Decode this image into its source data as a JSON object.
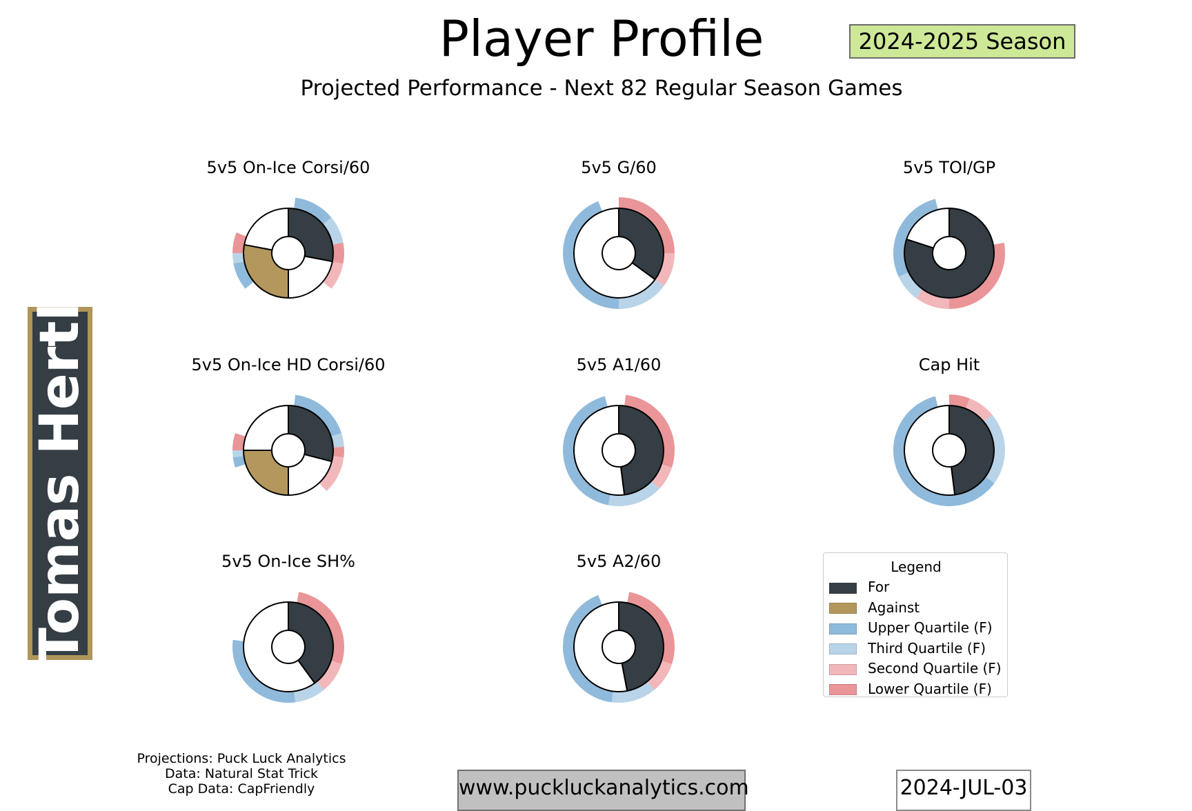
{
  "header": {
    "title": "Player Profile",
    "subtitle": "Projected Performance - Next 82 Regular Season Games",
    "season": "2024-2025 Season"
  },
  "player": {
    "name": "Tomas Hertl"
  },
  "colors": {
    "for": "#343e44",
    "against": "#b3975d",
    "upper": "#8fbadc",
    "third": "#b9d4e8",
    "second": "#f2b7ba",
    "lower": "#ea9598"
  },
  "chart_data": [
    {
      "type": "pie",
      "title": "5v5 On-Ice Corsi/60",
      "for": 0.28,
      "against": 0.28,
      "quartiles": [
        {
          "start": 0.02,
          "end": 0.14,
          "tier": "upper"
        },
        {
          "start": 0.14,
          "end": 0.22,
          "tier": "third"
        },
        {
          "start": 0.22,
          "end": 0.28,
          "tier": "lower"
        },
        {
          "start": 0.28,
          "end": 0.36,
          "tier": "second"
        },
        {
          "start": 0.64,
          "end": 0.72,
          "tier": "upper"
        },
        {
          "start": 0.72,
          "end": 0.75,
          "tier": "third"
        },
        {
          "start": 0.75,
          "end": 0.81,
          "tier": "lower"
        }
      ]
    },
    {
      "type": "pie",
      "title": "5v5 G/60",
      "for": 0.35,
      "against": 0,
      "quartiles": [
        {
          "start": 0.0,
          "end": 0.25,
          "tier": "lower"
        },
        {
          "start": 0.25,
          "end": 0.35,
          "tier": "second"
        },
        {
          "start": 0.35,
          "end": 0.5,
          "tier": "third"
        },
        {
          "start": 0.5,
          "end": 0.94,
          "tier": "upper"
        }
      ]
    },
    {
      "type": "pie",
      "title": "5v5 TOI/GP",
      "for": 0.8,
      "against": 0,
      "quartiles": [
        {
          "start": 0.22,
          "end": 0.5,
          "tier": "lower"
        },
        {
          "start": 0.5,
          "end": 0.6,
          "tier": "second"
        },
        {
          "start": 0.6,
          "end": 0.68,
          "tier": "third"
        },
        {
          "start": 0.68,
          "end": 0.96,
          "tier": "upper"
        }
      ]
    },
    {
      "type": "pie",
      "title": "5v5 On-Ice HD Corsi/60",
      "for": 0.29,
      "against": 0.25,
      "quartiles": [
        {
          "start": 0.02,
          "end": 0.2,
          "tier": "upper"
        },
        {
          "start": 0.2,
          "end": 0.24,
          "tier": "third"
        },
        {
          "start": 0.24,
          "end": 0.27,
          "tier": "lower"
        },
        {
          "start": 0.27,
          "end": 0.38,
          "tier": "second"
        },
        {
          "start": 0.7,
          "end": 0.73,
          "tier": "upper"
        },
        {
          "start": 0.73,
          "end": 0.75,
          "tier": "third"
        },
        {
          "start": 0.75,
          "end": 0.8,
          "tier": "lower"
        }
      ]
    },
    {
      "type": "pie",
      "title": "5v5 A1/60",
      "for": 0.48,
      "against": 0,
      "quartiles": [
        {
          "start": 0.02,
          "end": 0.3,
          "tier": "lower"
        },
        {
          "start": 0.3,
          "end": 0.37,
          "tier": "second"
        },
        {
          "start": 0.37,
          "end": 0.53,
          "tier": "third"
        },
        {
          "start": 0.53,
          "end": 0.96,
          "tier": "upper"
        }
      ]
    },
    {
      "type": "pie",
      "title": "Cap Hit",
      "for": 0.48,
      "against": 0,
      "quartiles": [
        {
          "start": 0.0,
          "end": 0.06,
          "tier": "lower"
        },
        {
          "start": 0.06,
          "end": 0.14,
          "tier": "second"
        },
        {
          "start": 0.14,
          "end": 0.35,
          "tier": "third"
        },
        {
          "start": 0.35,
          "end": 0.96,
          "tier": "upper"
        }
      ]
    },
    {
      "type": "pie",
      "title": "5v5 On-Ice SH%",
      "for": 0.4,
      "against": 0,
      "quartiles": [
        {
          "start": 0.03,
          "end": 0.3,
          "tier": "lower"
        },
        {
          "start": 0.3,
          "end": 0.39,
          "tier": "second"
        },
        {
          "start": 0.39,
          "end": 0.48,
          "tier": "third"
        },
        {
          "start": 0.48,
          "end": 0.77,
          "tier": "upper"
        }
      ]
    },
    {
      "type": "pie",
      "title": "5v5 A2/60",
      "for": 0.47,
      "against": 0,
      "quartiles": [
        {
          "start": 0.03,
          "end": 0.3,
          "tier": "lower"
        },
        {
          "start": 0.3,
          "end": 0.39,
          "tier": "second"
        },
        {
          "start": 0.39,
          "end": 0.52,
          "tier": "third"
        },
        {
          "start": 0.52,
          "end": 0.94,
          "tier": "upper"
        }
      ]
    }
  ],
  "legend": {
    "title": "Legend",
    "items": [
      {
        "label": "For",
        "key": "for"
      },
      {
        "label": "Against",
        "key": "against"
      },
      {
        "label": "Upper Quartile (F)",
        "key": "upper"
      },
      {
        "label": "Third Quartile (F)",
        "key": "third"
      },
      {
        "label": "Second Quartile (F)",
        "key": "second"
      },
      {
        "label": "Lower Quartile (F)",
        "key": "lower"
      }
    ]
  },
  "footer": {
    "credits": [
      "Projections: Puck Luck Analytics",
      "Data: Natural Stat Trick",
      "Cap Data: CapFriendly"
    ],
    "url": "www.puckluckanalytics.com",
    "date": "2024-JUL-03"
  }
}
